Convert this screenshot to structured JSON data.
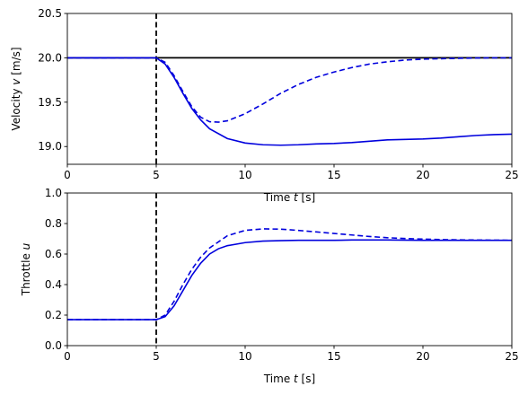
{
  "colors": {
    "series": "#0000dd",
    "reference": "#000000",
    "step_marker": "#000000"
  },
  "chart_data": [
    {
      "type": "line",
      "xlabel": "Time t [s]",
      "xlabel_parts": [
        "Time ",
        "t",
        " [s]"
      ],
      "ylabel": "Velocity v [m/s]",
      "ylabel_parts": [
        "Velocity ",
        "v",
        " [m/s]"
      ],
      "xlim": [
        0,
        25
      ],
      "ylim": [
        18.8,
        20.5
      ],
      "xticks": [
        "0",
        "5",
        "10",
        "15",
        "20",
        "25"
      ],
      "yticks": [
        "19.0",
        "19.5",
        "20.0",
        "20.5"
      ],
      "reference_line": 20.0,
      "step_time": 5,
      "grid": false,
      "series": [
        {
          "style": "solid",
          "x": [
            0,
            5,
            5.5,
            6,
            6.5,
            7,
            7.5,
            8,
            9,
            10,
            11,
            12,
            13,
            14,
            15,
            16,
            17,
            18,
            19,
            20,
            21,
            22,
            23,
            24,
            25
          ],
          "y": [
            20.0,
            20.0,
            19.93,
            19.78,
            19.6,
            19.43,
            19.3,
            19.2,
            19.09,
            19.04,
            19.02,
            19.015,
            19.02,
            19.03,
            19.035,
            19.045,
            19.06,
            19.075,
            19.08,
            19.085,
            19.095,
            19.11,
            19.125,
            19.135,
            19.14
          ]
        },
        {
          "style": "dashed",
          "x": [
            0,
            5,
            5.5,
            6,
            6.5,
            7,
            7.5,
            8,
            8.5,
            9,
            10,
            11,
            12,
            13,
            14,
            15,
            16,
            17,
            18,
            19,
            20,
            21,
            22,
            23,
            24,
            25
          ],
          "y": [
            20.0,
            20.0,
            19.95,
            19.8,
            19.62,
            19.45,
            19.33,
            19.28,
            19.275,
            19.29,
            19.37,
            19.48,
            19.6,
            19.7,
            19.78,
            19.84,
            19.89,
            19.93,
            19.955,
            19.975,
            19.985,
            19.99,
            19.995,
            19.998,
            20.0,
            20.0
          ]
        }
      ]
    },
    {
      "type": "line",
      "xlabel": "Time t [s]",
      "xlabel_parts": [
        "Time ",
        "t",
        " [s]"
      ],
      "ylabel": "Throttle u",
      "ylabel_parts": [
        "Throttle ",
        "u",
        ""
      ],
      "xlim": [
        0,
        25
      ],
      "ylim": [
        0,
        1
      ],
      "xticks": [
        "0",
        "5",
        "10",
        "15",
        "20",
        "25"
      ],
      "yticks": [
        "0.0",
        "0.2",
        "0.4",
        "0.6",
        "0.8",
        "1.0"
      ],
      "step_time": 5,
      "grid": false,
      "series": [
        {
          "style": "solid",
          "x": [
            0,
            5,
            5.5,
            6,
            6.5,
            7,
            7.5,
            8,
            8.5,
            9,
            10,
            11,
            12,
            13,
            14,
            15,
            16,
            18,
            20,
            22,
            24,
            25
          ],
          "y": [
            0.17,
            0.17,
            0.19,
            0.26,
            0.36,
            0.46,
            0.54,
            0.6,
            0.635,
            0.655,
            0.675,
            0.685,
            0.688,
            0.69,
            0.69,
            0.69,
            0.692,
            0.692,
            0.69,
            0.69,
            0.69,
            0.69
          ]
        },
        {
          "style": "dashed",
          "x": [
            0,
            5,
            5.5,
            6,
            6.5,
            7,
            7.5,
            8,
            9,
            10,
            11,
            12,
            13,
            14,
            15,
            16,
            17,
            18,
            19,
            20,
            21,
            22,
            23,
            24,
            25
          ],
          "y": [
            0.17,
            0.17,
            0.2,
            0.29,
            0.4,
            0.5,
            0.58,
            0.64,
            0.72,
            0.755,
            0.765,
            0.763,
            0.755,
            0.745,
            0.735,
            0.725,
            0.715,
            0.707,
            0.702,
            0.698,
            0.695,
            0.693,
            0.692,
            0.691,
            0.69
          ]
        }
      ]
    }
  ]
}
